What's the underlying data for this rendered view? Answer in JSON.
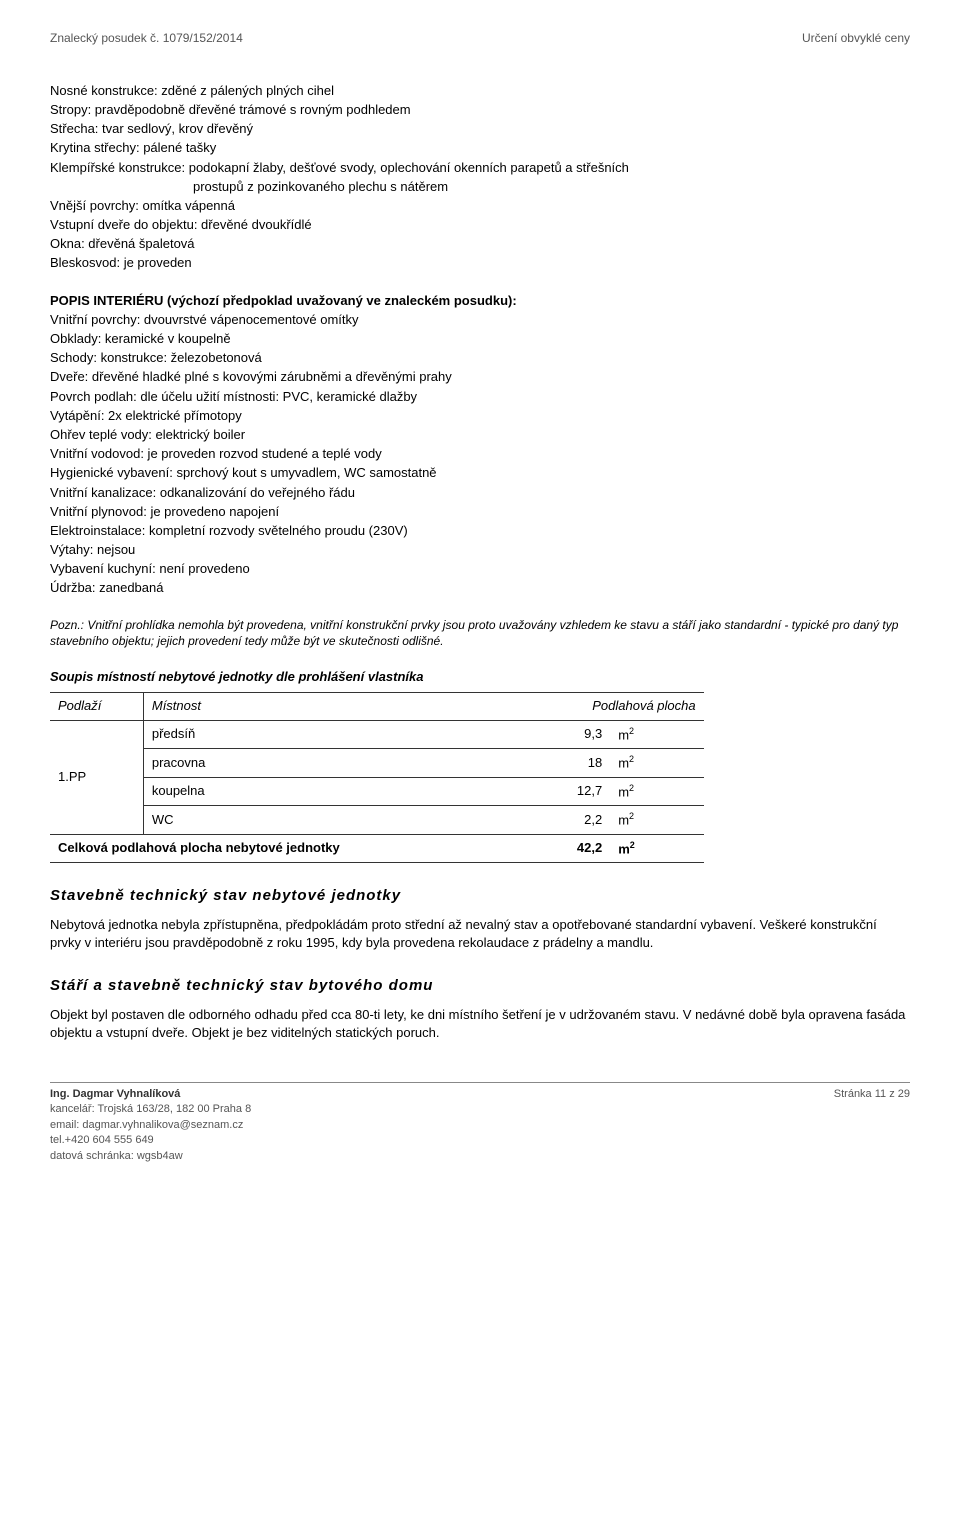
{
  "header": {
    "left": "Znalecký posudek č. 1079/152/2014",
    "right": "Určení obvyklé ceny"
  },
  "exterior": {
    "lines": [
      "Nosné konstrukce: zděné z pálených plných cihel",
      "Stropy: pravděpodobně dřevěné trámové s rovným podhledem",
      "Střecha: tvar sedlový, krov dřevěný",
      "Krytina střechy: pálené tašky",
      "Klempířské konstrukce: podokapní žlaby, dešťové svody, oplechování okenních parapetů a střešních",
      "           prostupů z pozinkovaného plechu s nátěrem",
      "Vnější povrchy: omítka vápenná",
      "Vstupní dveře do objektu: dřevěné dvoukřídlé",
      "Okna: dřevěná špaletová",
      "Bleskosvod: je proveden"
    ]
  },
  "interior": {
    "heading": "POPIS INTERIÉRU (výchozí předpoklad uvažovaný ve znaleckém posudku):",
    "lines": [
      "Vnitřní povrchy: dvouvrstvé vápenocementové omítky",
      "Obklady: keramické v koupelně",
      "Schody: konstrukce: železobetonová",
      "Dveře: dřevěné hladké plné s kovovými zárubněmi a dřevěnými prahy",
      "Povrch podlah: dle účelu užití místnosti: PVC, keramické dlažby",
      "Vytápění: 2x elektrické přímotopy",
      "Ohřev teplé vody: elektrický boiler",
      "Vnitřní vodovod: je proveden rozvod studené a teplé vody",
      "Hygienické vybavení: sprchový kout s umyvadlem, WC samostatně",
      "Vnitřní kanalizace: odkanalizování do veřejného řádu",
      "Vnitřní plynovod: je provedeno napojení",
      "Elektroinstalace: kompletní rozvody světelného proudu (230V)",
      "Výtahy: nejsou",
      "Vybavení kuchyní: není provedeno",
      "Údržba: zanedbaná"
    ]
  },
  "note": "Pozn.: Vnitřní prohlídka nemohla být provedena, vnitřní konstrukční prvky jsou proto uvažovány vzhledem ke stavu a stáří jako standardní - typické pro daný typ stavebního objektu; jejich provedení tedy může být ve skutečnosti odlišné.",
  "rooms_table": {
    "title": "Soupis místností nebytové jednotky dle prohlášení vlastníka",
    "columns": [
      "Podlaží",
      "Místnost",
      "Podlahová plocha"
    ],
    "floor": "1.PP",
    "rows": [
      {
        "room": "předsíň",
        "value": "9,3",
        "unit": "m²"
      },
      {
        "room": "pracovna",
        "value": "18",
        "unit": "m²"
      },
      {
        "room": "koupelna",
        "value": "12,7",
        "unit": "m²"
      },
      {
        "room": "WC",
        "value": "2,2",
        "unit": "m²"
      }
    ],
    "total_label": "Celková podlahová plocha nebytové jednotky",
    "total_value": "42,2",
    "total_unit": "m²"
  },
  "sec_tech": {
    "heading": "Stavebně technický stav nebytové jednotky",
    "text": "Nebytová jednotka nebyla zpřístupněna, předpokládám proto střední až nevalný stav a opotřebované standardní vybavení. Veškeré konstrukční prvky v interiéru jsou pravděpodobně z roku 1995, kdy byla provedena rekolaudace z prádelny a mandlu."
  },
  "sec_age": {
    "heading": "Stáří a stavebně technický stav bytového domu",
    "text": "Objekt byl postaven dle odborného odhadu před cca 80-ti lety, ke dni místního šetření je v udržovaném stavu. V nedávné době byla opravena fasáda objektu a vstupní dveře. Objekt je bez viditelných statických poruch."
  },
  "footer": {
    "name": "Ing. Dagmar Vyhnalíková",
    "addr": "kancelář: Trojská 163/28, 182 00 Praha 8",
    "email": "email: dagmar.vyhnalikova@seznam.cz",
    "tel": "tel.+420 604 555 649",
    "ds": "datová schránka: wgsb4aw",
    "page": "Stránka 11 z 29"
  }
}
